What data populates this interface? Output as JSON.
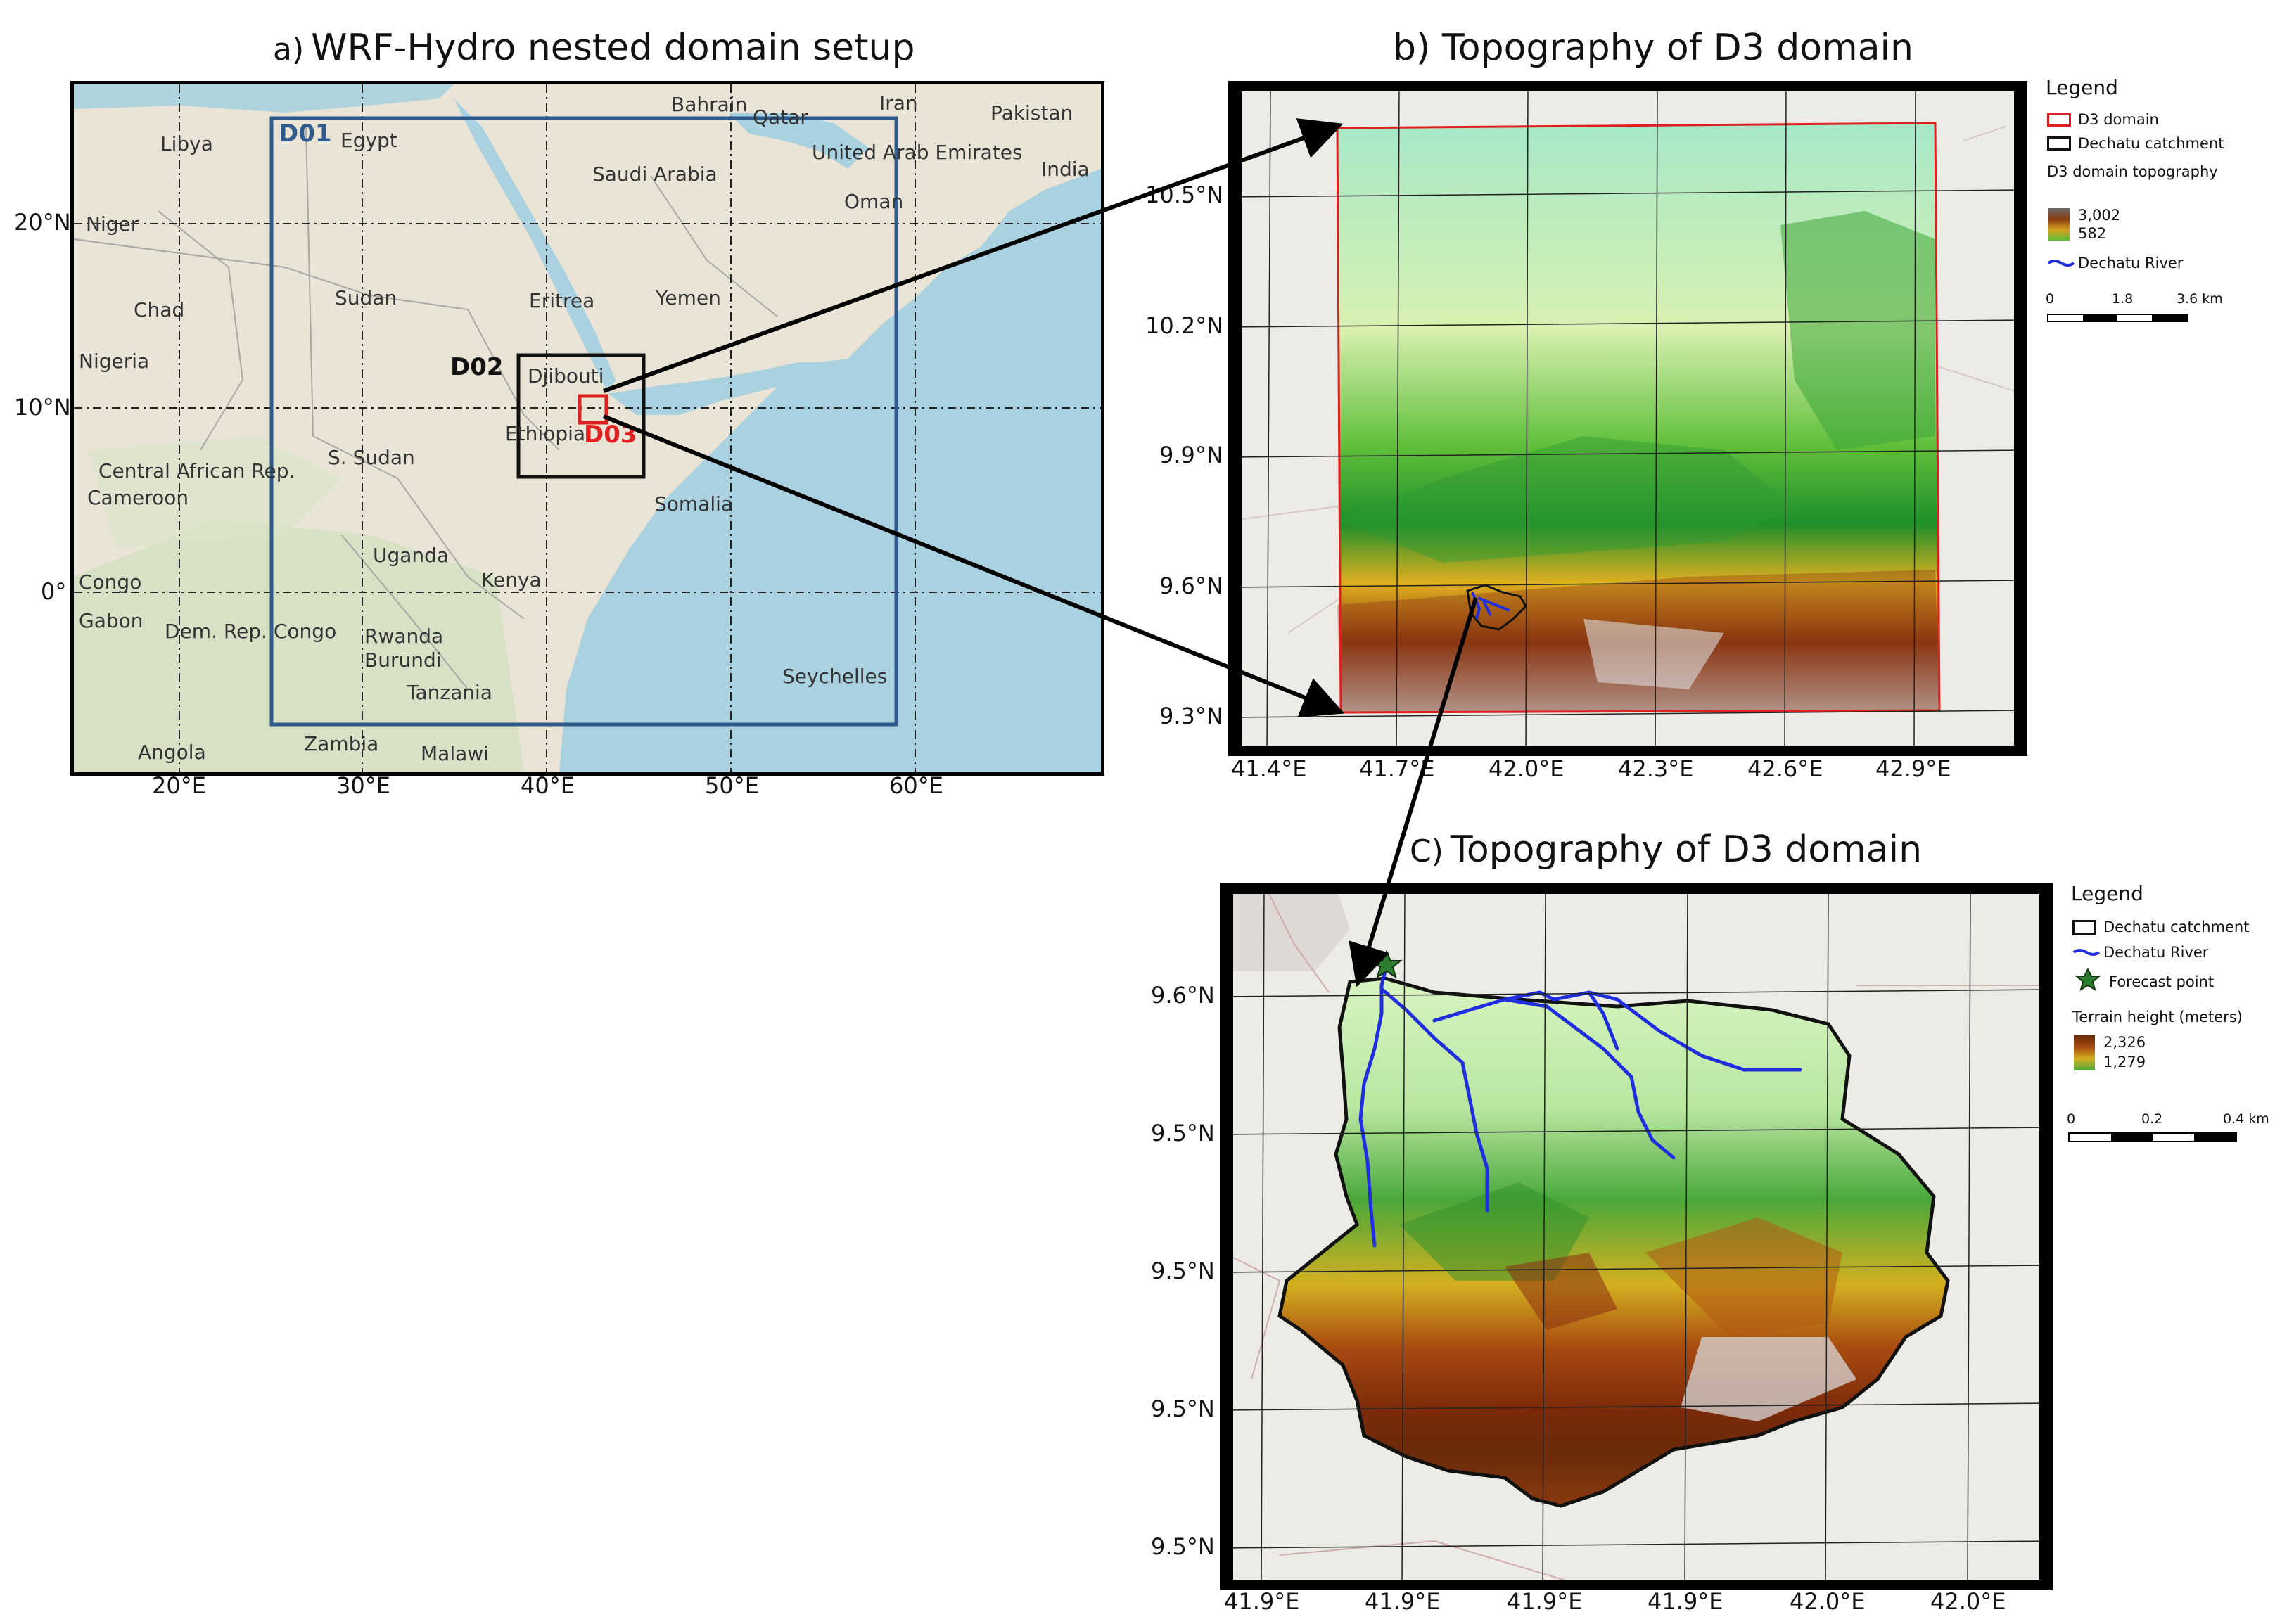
{
  "panels": {
    "a": {
      "prefix": "a)",
      "title": "WRF-Hydro nested domain setup",
      "lat_ticks": [
        "20°N",
        "10°N",
        "0°"
      ],
      "lon_ticks": [
        "20°E",
        "30°E",
        "40°E",
        "50°E",
        "60°E"
      ],
      "domains": [
        {
          "name": "D01",
          "color": "#2f5a8e"
        },
        {
          "name": "D02",
          "color": "#111111"
        },
        {
          "name": "D03",
          "color": "#e02020"
        }
      ],
      "places": [
        "Libya",
        "Egypt",
        "Bahrain",
        "Qatar",
        "Iran",
        "Pakistan",
        "United Arab Emirates",
        "India",
        "Saudi Arabia",
        "Oman",
        "Niger",
        "Chad",
        "Sudan",
        "Eritrea",
        "Yemen",
        "Nigeria",
        "Djibouti",
        "Ethiopia",
        "Central African Rep.",
        "S. Sudan",
        "Cameroon",
        "Somalia",
        "Uganda",
        "Kenya",
        "Congo",
        "Gabon",
        "Dem. Rep. Congo",
        "Rwanda",
        "Burundi",
        "Tanzania",
        "Seychelles",
        "Angola",
        "Zambia",
        "Malawi"
      ]
    },
    "b": {
      "prefix": "b)",
      "title": "Topography of D3 domain",
      "lat_ticks": [
        "10.5°N",
        "10.2°N",
        "9.9°N",
        "9.6°N",
        "9.3°N"
      ],
      "lon_ticks": [
        "41.4°E",
        "41.7°E",
        "42.0°E",
        "42.3°E",
        "42.6°E",
        "42.9°E"
      ],
      "legend": {
        "title": "Legend",
        "items": [
          "D3 domain",
          "Dechatu catchment",
          "D3 domain topography"
        ],
        "ramp_max": "3,002",
        "ramp_min": "582",
        "river": "Dechatu River",
        "scale": [
          "0",
          "1.8",
          "3.6 km"
        ]
      }
    },
    "c": {
      "prefix": "C)",
      "title": "Topography of D3 domain",
      "lat_ticks": [
        "9.6°N",
        "9.5°N",
        "9.5°N",
        "9.5°N",
        "9.5°N"
      ],
      "lon_ticks": [
        "41.9°E",
        "41.9°E",
        "41.9°E",
        "41.9°E",
        "42.0°E",
        "42.0°E"
      ],
      "legend": {
        "title": "Legend",
        "catchment": "Dechatu catchment",
        "river": "Dechatu River",
        "forecast": "Forecast point",
        "terrain": "Terrain height (meters)",
        "ramp_max": "2,326",
        "ramp_min": "1,279",
        "scale": [
          "0",
          "0.2",
          "0.4 km"
        ]
      }
    }
  },
  "colors": {
    "land": "#e9e4d6",
    "sea": "#a9d1df",
    "d01": "#2f5a8e",
    "d03": "#e02020",
    "river": "#1f2fe0"
  }
}
